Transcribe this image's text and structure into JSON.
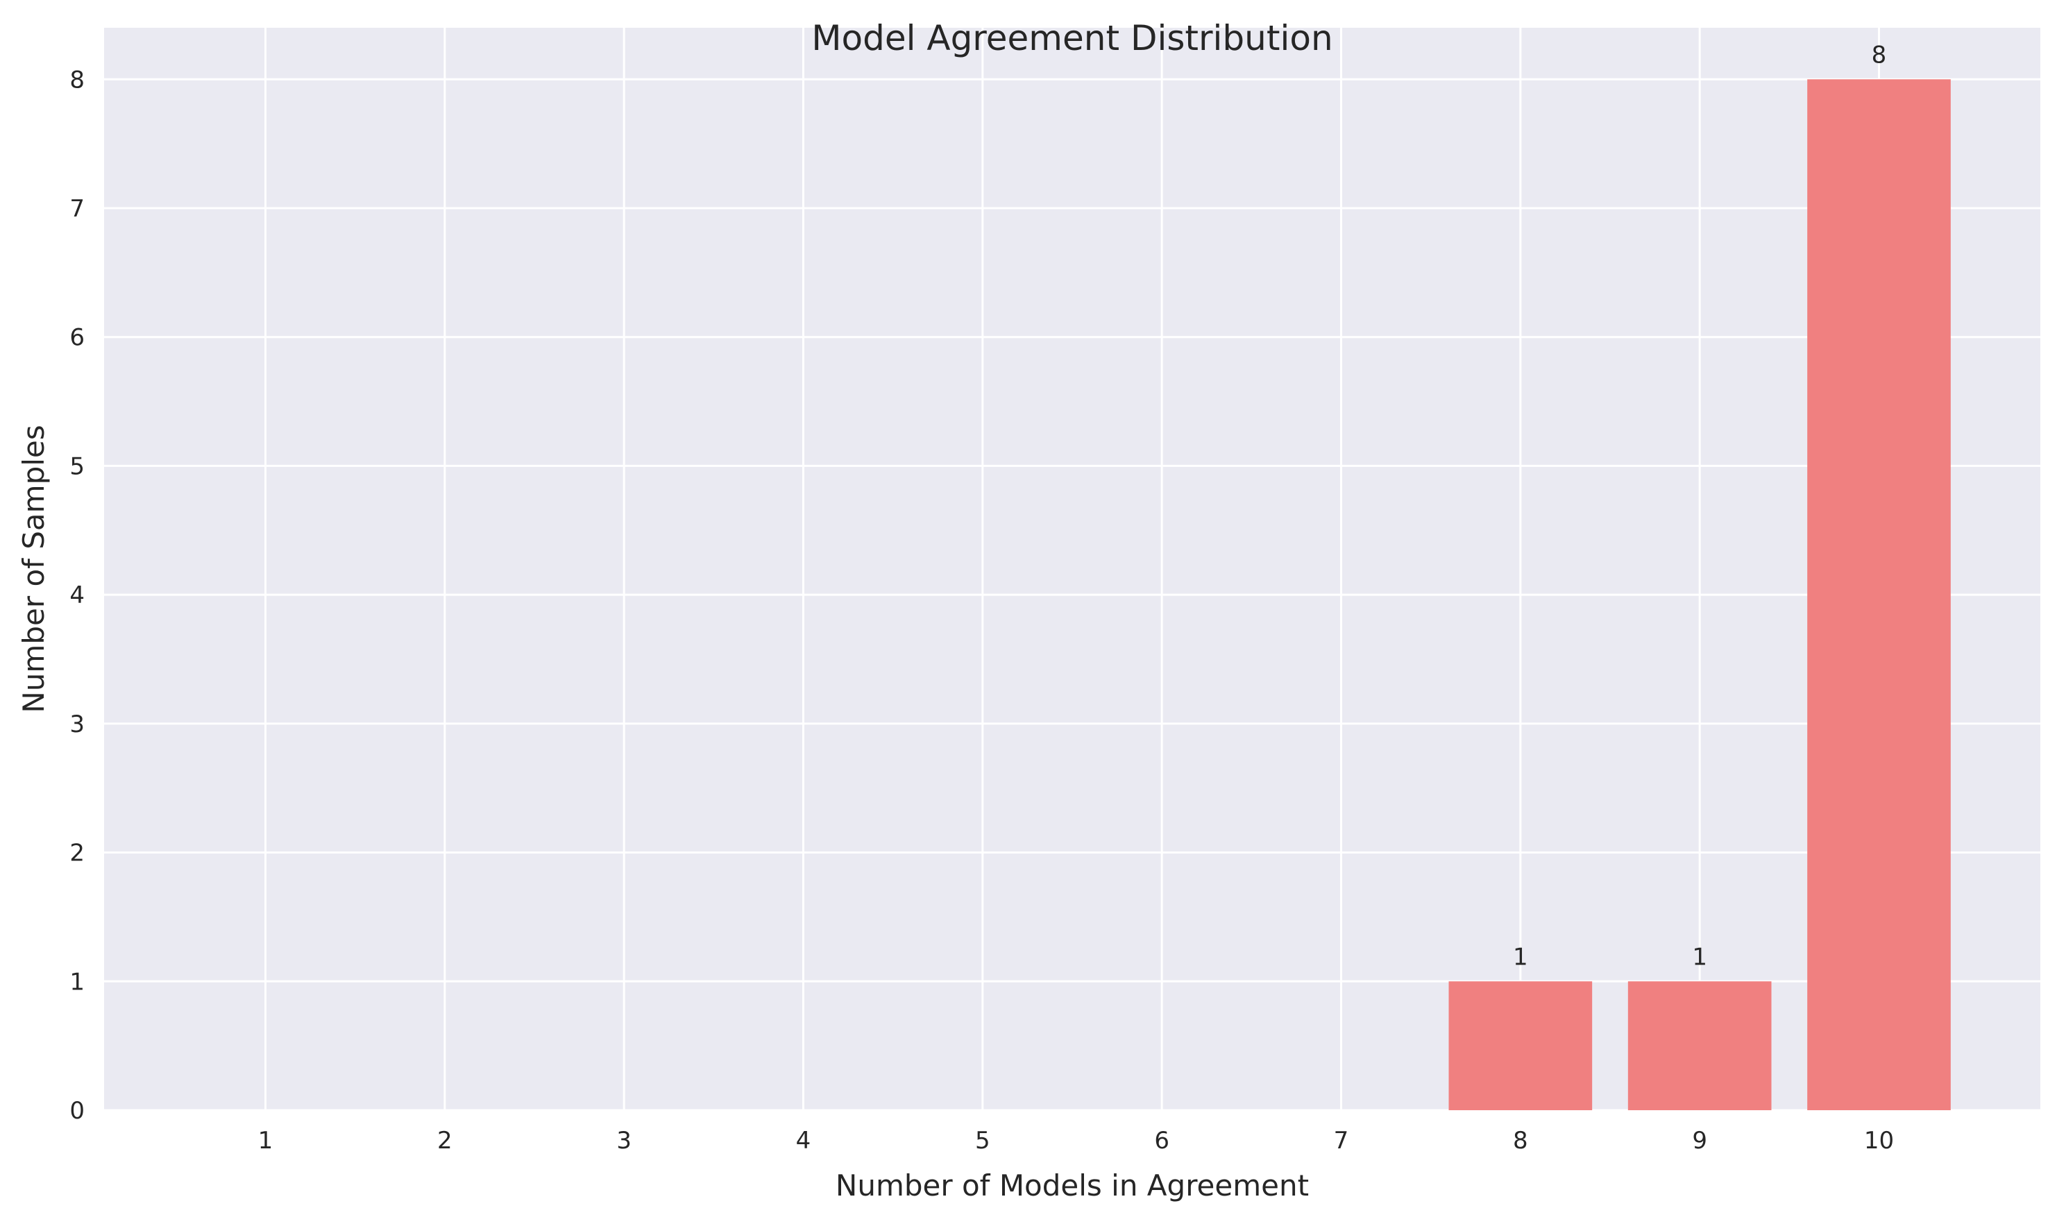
{
  "chart_data": {
    "type": "bar",
    "title": "Model Agreement Distribution",
    "xlabel": "Number of Models in Agreement",
    "ylabel": "Number of Samples",
    "categories": [
      "1",
      "2",
      "3",
      "4",
      "5",
      "6",
      "7",
      "8",
      "9",
      "10"
    ],
    "x": [
      1,
      2,
      3,
      4,
      5,
      6,
      7,
      8,
      9,
      10
    ],
    "values": [
      0,
      0,
      0,
      0,
      0,
      0,
      0,
      1,
      1,
      8
    ],
    "data_labels": [
      "",
      "",
      "",
      "",
      "",
      "",
      "",
      "1",
      "1",
      "8"
    ],
    "yticks": [
      "0",
      "1",
      "2",
      "3",
      "4",
      "5",
      "6",
      "7",
      "8"
    ],
    "ylim": [
      0,
      8.4
    ],
    "xlim": [
      0.1,
      10.9
    ],
    "grid": true,
    "colors": {
      "bar": "#f08080",
      "plot_background": "#eaeaf2",
      "grid": "#ffffff",
      "text": "#262626"
    }
  }
}
